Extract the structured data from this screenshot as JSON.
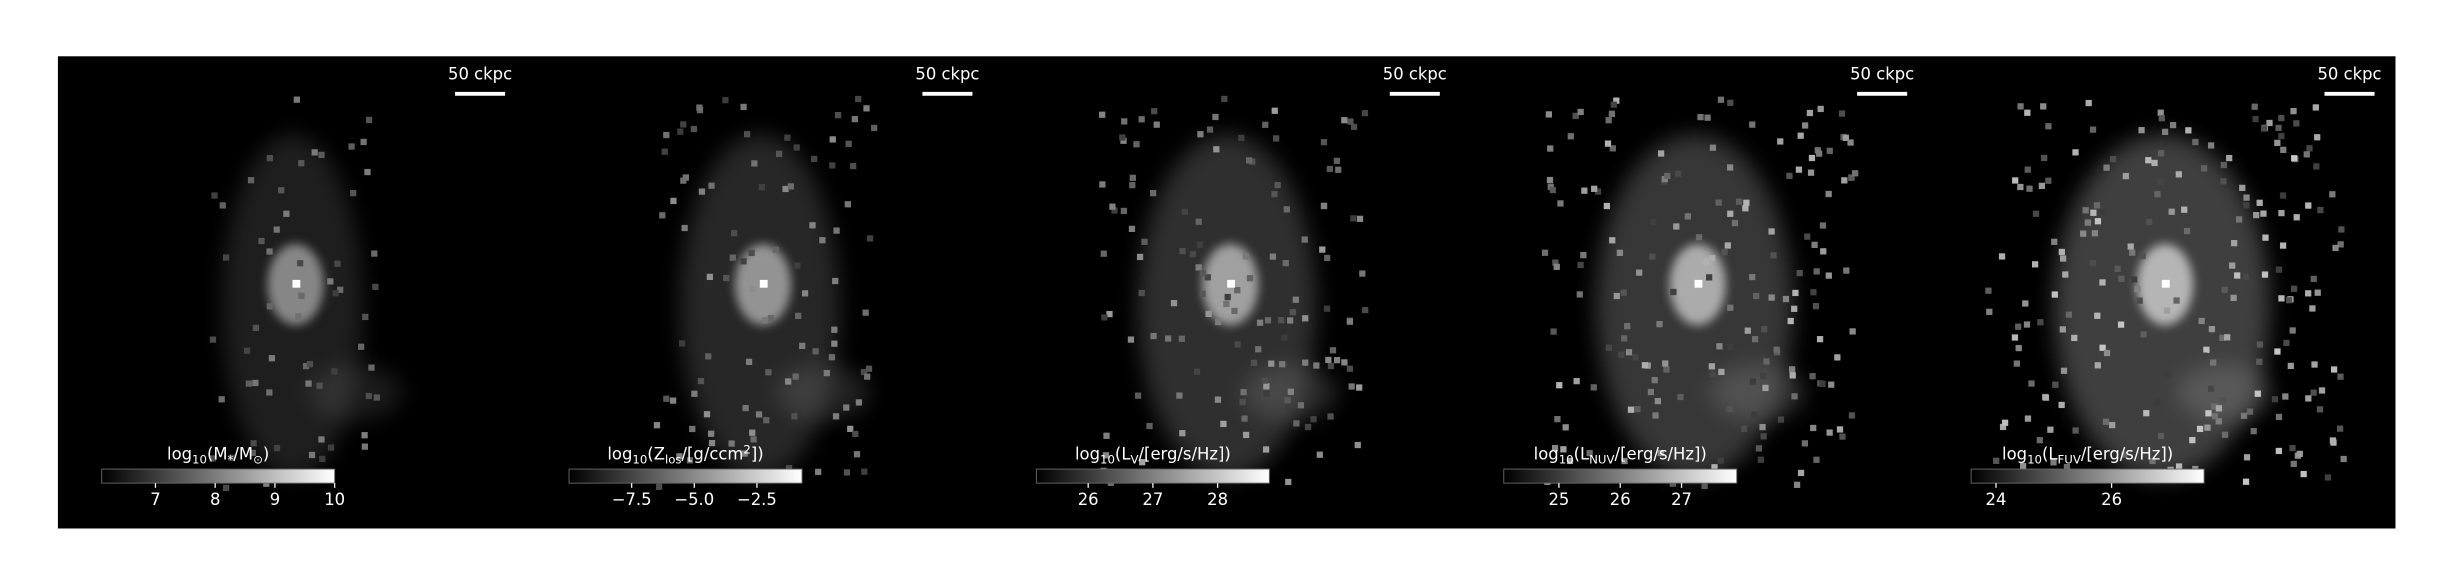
{
  "panels": [
    {
      "scale_bar": "50 ckpc",
      "colorbar": {
        "label": [
          {
            "text": "log"
          },
          {
            "text": "10",
            "sub": true
          },
          {
            "text": "(M"
          },
          {
            "text": "*",
            "sub": true
          },
          {
            "text": "/M"
          },
          {
            "text": "⊙",
            "sub": true
          },
          {
            "text": ")"
          }
        ],
        "lim": [
          6.1,
          10.0
        ],
        "ticks": [
          7,
          8,
          9,
          10
        ]
      }
    },
    {
      "scale_bar": "50 ckpc",
      "colorbar": {
        "label": [
          {
            "text": "log"
          },
          {
            "text": "10",
            "sub": true
          },
          {
            "text": "(Z"
          },
          {
            "text": "los",
            "sub": true
          },
          {
            "text": "/[g/ccm"
          },
          {
            "text": "2",
            "sup": true
          },
          {
            "text": "])"
          }
        ],
        "lim": [
          -10,
          -0.7
        ],
        "ticks": [
          {
            "value": -7.5,
            "label": "−7.5"
          },
          {
            "value": -5.0,
            "label": "−5.0"
          },
          {
            "value": -2.5,
            "label": "−2.5"
          }
        ]
      }
    },
    {
      "scale_bar": "50 ckpc",
      "colorbar": {
        "label": [
          {
            "text": "log"
          },
          {
            "text": "10",
            "sub": true
          },
          {
            "text": "(L"
          },
          {
            "text": "V",
            "sub": true
          },
          {
            "text": "/[erg/s/Hz])"
          }
        ],
        "lim": [
          25.2,
          28.8
        ],
        "ticks": [
          26,
          27,
          28
        ]
      }
    },
    {
      "scale_bar": "50 ckpc",
      "colorbar": {
        "label": [
          {
            "text": "log"
          },
          {
            "text": "10",
            "sub": true
          },
          {
            "text": "(L"
          },
          {
            "text": "NUV",
            "sub": true
          },
          {
            "text": "/[erg/s/Hz])"
          }
        ],
        "lim": [
          24.1,
          27.9
        ],
        "ticks": [
          25,
          26,
          27
        ]
      }
    },
    {
      "scale_bar": "50 ckpc",
      "colorbar": {
        "label": [
          {
            "text": "log"
          },
          {
            "text": "10",
            "sub": true
          },
          {
            "text": "(L"
          },
          {
            "text": "FUV",
            "sub": true
          },
          {
            "text": "/[erg/s/Hz])"
          }
        ],
        "lim": [
          23.57,
          27.6
        ],
        "ticks": [
          24,
          26
        ]
      }
    }
  ]
}
